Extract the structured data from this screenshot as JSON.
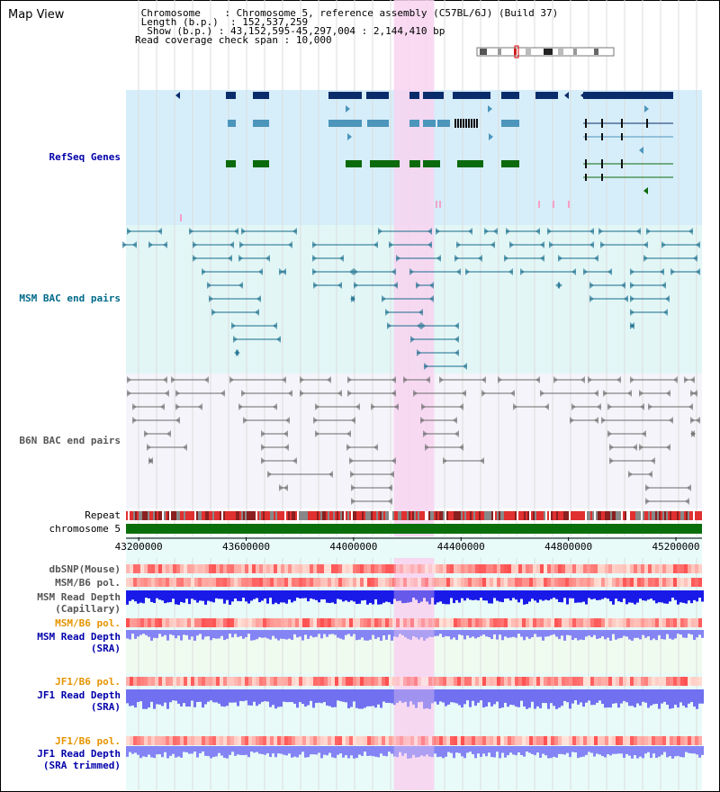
{
  "view_title": "Map View",
  "header": {
    "chromosome_label": "Chromosome",
    "chromosome_value": "Chromosome 5, reference assembly (C57BL/6J) (Build 37)",
    "length_label": "Length (b.p.)",
    "length_value": "152,537,259",
    "show_label": "Show (b.p.)",
    "show_value": "43,152,595-45,297,004 : 2,144,410 bp",
    "coverage_label": "Read coverage check span",
    "coverage_value": "10,000"
  },
  "tracks": {
    "refseq": "RefSeq Genes",
    "msm_bac": "MSM BAC end pairs",
    "b6n_bac": "B6N BAC end pairs",
    "repeat": "Repeat",
    "chromosome": "chromosome 5",
    "dbsnp": "dbSNP(Mouse)",
    "msm_b6_pol_1": "MSM/B6 pol.",
    "msm_read_depth_cap_1": "MSM Read Depth",
    "msm_read_depth_cap_2": "(Capillary)",
    "msm_b6_pol_2": "MSM/B6 pol.",
    "msm_read_depth_sra_1": "MSM Read Depth",
    "msm_read_depth_sra_2": "(SRA)",
    "jf1_b6_pol_1": "JF1/B6 pol.",
    "jf1_read_depth_sra_1": "JF1 Read Depth",
    "jf1_read_depth_sra_2": "(SRA)",
    "jf1_b6_pol_2": "JF1/B6 pol.",
    "jf1_read_depth_trim_1": "JF1 Read Depth",
    "jf1_read_depth_trim_2": "(SRA trimmed)"
  },
  "axis": {
    "range_bp": [
      43152595,
      45297004
    ],
    "ticks": [
      "43200000",
      "43600000",
      "44000000",
      "44400000",
      "44800000",
      "45200000"
    ]
  },
  "highlight_bp": [
    44150000,
    44300000
  ],
  "colors": {
    "refseq_bg": "#d6eefa",
    "msm_bac_bg": "#e2f6f6",
    "b6n_bac_bg": "#f4f4fa",
    "lower_bg": "#e8fbf8",
    "highlight": "#f8d4f0",
    "refseq_dark": "#0b2c6b",
    "refseq_mid": "#4c95bb",
    "refseq_green": "#0b6a0b",
    "msm_bac": "#176c8c",
    "b6n_bac": "#6a6a6a",
    "chromosome_bar": "#0a6f0a",
    "depth_blue": "#1a1ae8",
    "depth_light": "#8484f4",
    "label_blue": "#0000aa",
    "label_orange": "#e69400",
    "label_teal": "#006a8a",
    "label_gray": "#555555"
  }
}
